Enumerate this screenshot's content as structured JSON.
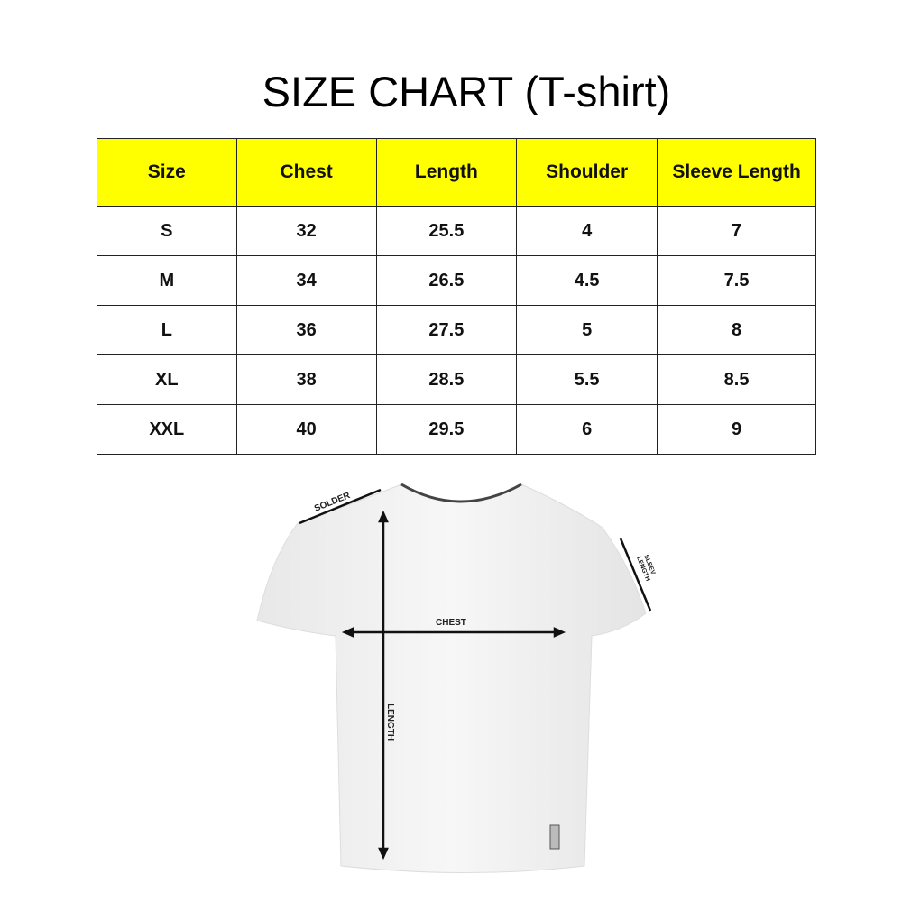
{
  "title": "SIZE CHART (T-shirt)",
  "header_color": "#ffff00",
  "table": {
    "headers": [
      "Size",
      "Chest",
      "Length",
      "Shoulder",
      "Sleeve Length"
    ],
    "rows": [
      [
        "S",
        "32",
        "25.5",
        "4",
        "7"
      ],
      [
        "M",
        "34",
        "26.5",
        "4.5",
        "7.5"
      ],
      [
        "L",
        "36",
        "27.5",
        "5",
        "8"
      ],
      [
        "XL",
        "38",
        "28.5",
        "5.5",
        "8.5"
      ],
      [
        "XXL",
        "40",
        "29.5",
        "6",
        "9"
      ]
    ]
  },
  "diagram": {
    "solder": "SOLDER",
    "chest": "CHEST",
    "sleeve_1": "SLEEV",
    "sleeve_2": "LENGTH",
    "length": "LENGTH"
  }
}
